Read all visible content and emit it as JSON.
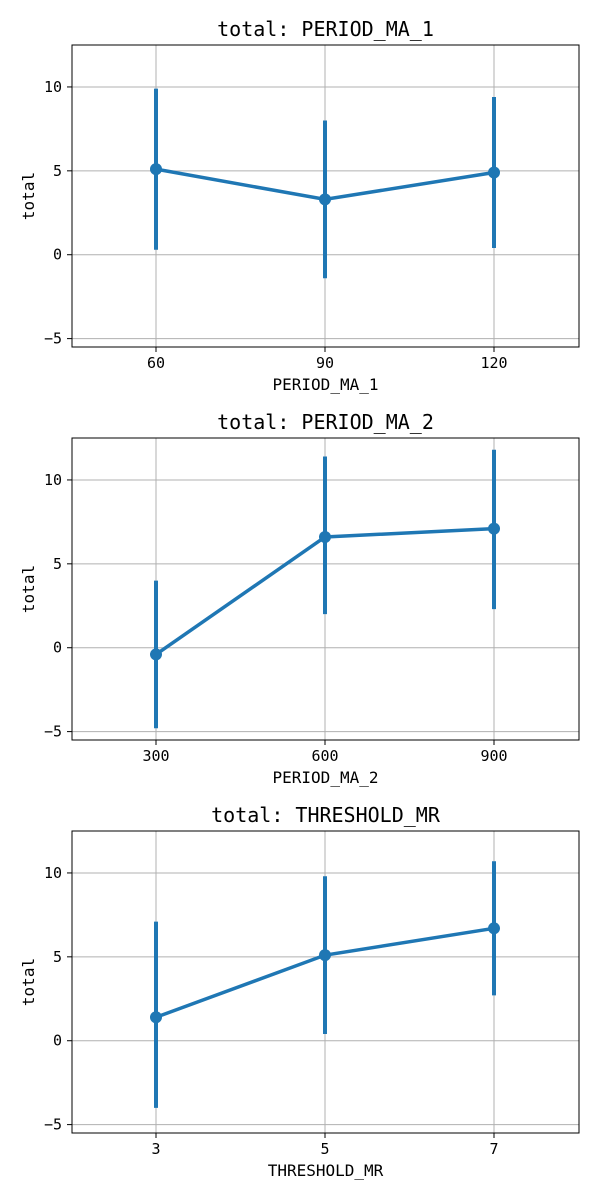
{
  "chart_data": [
    {
      "type": "line",
      "title": "total: PERIOD_MA_1",
      "xlabel": "PERIOD_MA_1",
      "ylabel": "total",
      "categories": [
        "60",
        "90",
        "120"
      ],
      "values": [
        5.1,
        3.3,
        4.9
      ],
      "error_low": [
        0.3,
        -1.4,
        0.4
      ],
      "error_high": [
        9.9,
        8.0,
        9.4
      ],
      "ylim": [
        -5.5,
        12.5
      ],
      "yticks": [
        -5,
        0,
        5,
        10
      ],
      "grid": true,
      "color": "#1f77b4"
    },
    {
      "type": "line",
      "title": "total: PERIOD_MA_2",
      "xlabel": "PERIOD_MA_2",
      "ylabel": "total",
      "categories": [
        "300",
        "600",
        "900"
      ],
      "values": [
        -0.4,
        6.6,
        7.1
      ],
      "error_low": [
        -4.8,
        2.0,
        2.3
      ],
      "error_high": [
        4.0,
        11.4,
        11.8
      ],
      "ylim": [
        -5.5,
        12.5
      ],
      "yticks": [
        -5,
        0,
        5,
        10
      ],
      "grid": true,
      "color": "#1f77b4"
    },
    {
      "type": "line",
      "title": "total: THRESHOLD_MR",
      "xlabel": "THRESHOLD_MR",
      "ylabel": "total",
      "categories": [
        "3",
        "5",
        "7"
      ],
      "values": [
        1.4,
        5.1,
        6.7
      ],
      "error_low": [
        -4.0,
        0.4,
        2.7
      ],
      "error_high": [
        7.1,
        9.8,
        10.7
      ],
      "ylim": [
        -5.5,
        12.5
      ],
      "yticks": [
        -5,
        0,
        5,
        10
      ],
      "grid": true,
      "color": "#1f77b4"
    }
  ]
}
